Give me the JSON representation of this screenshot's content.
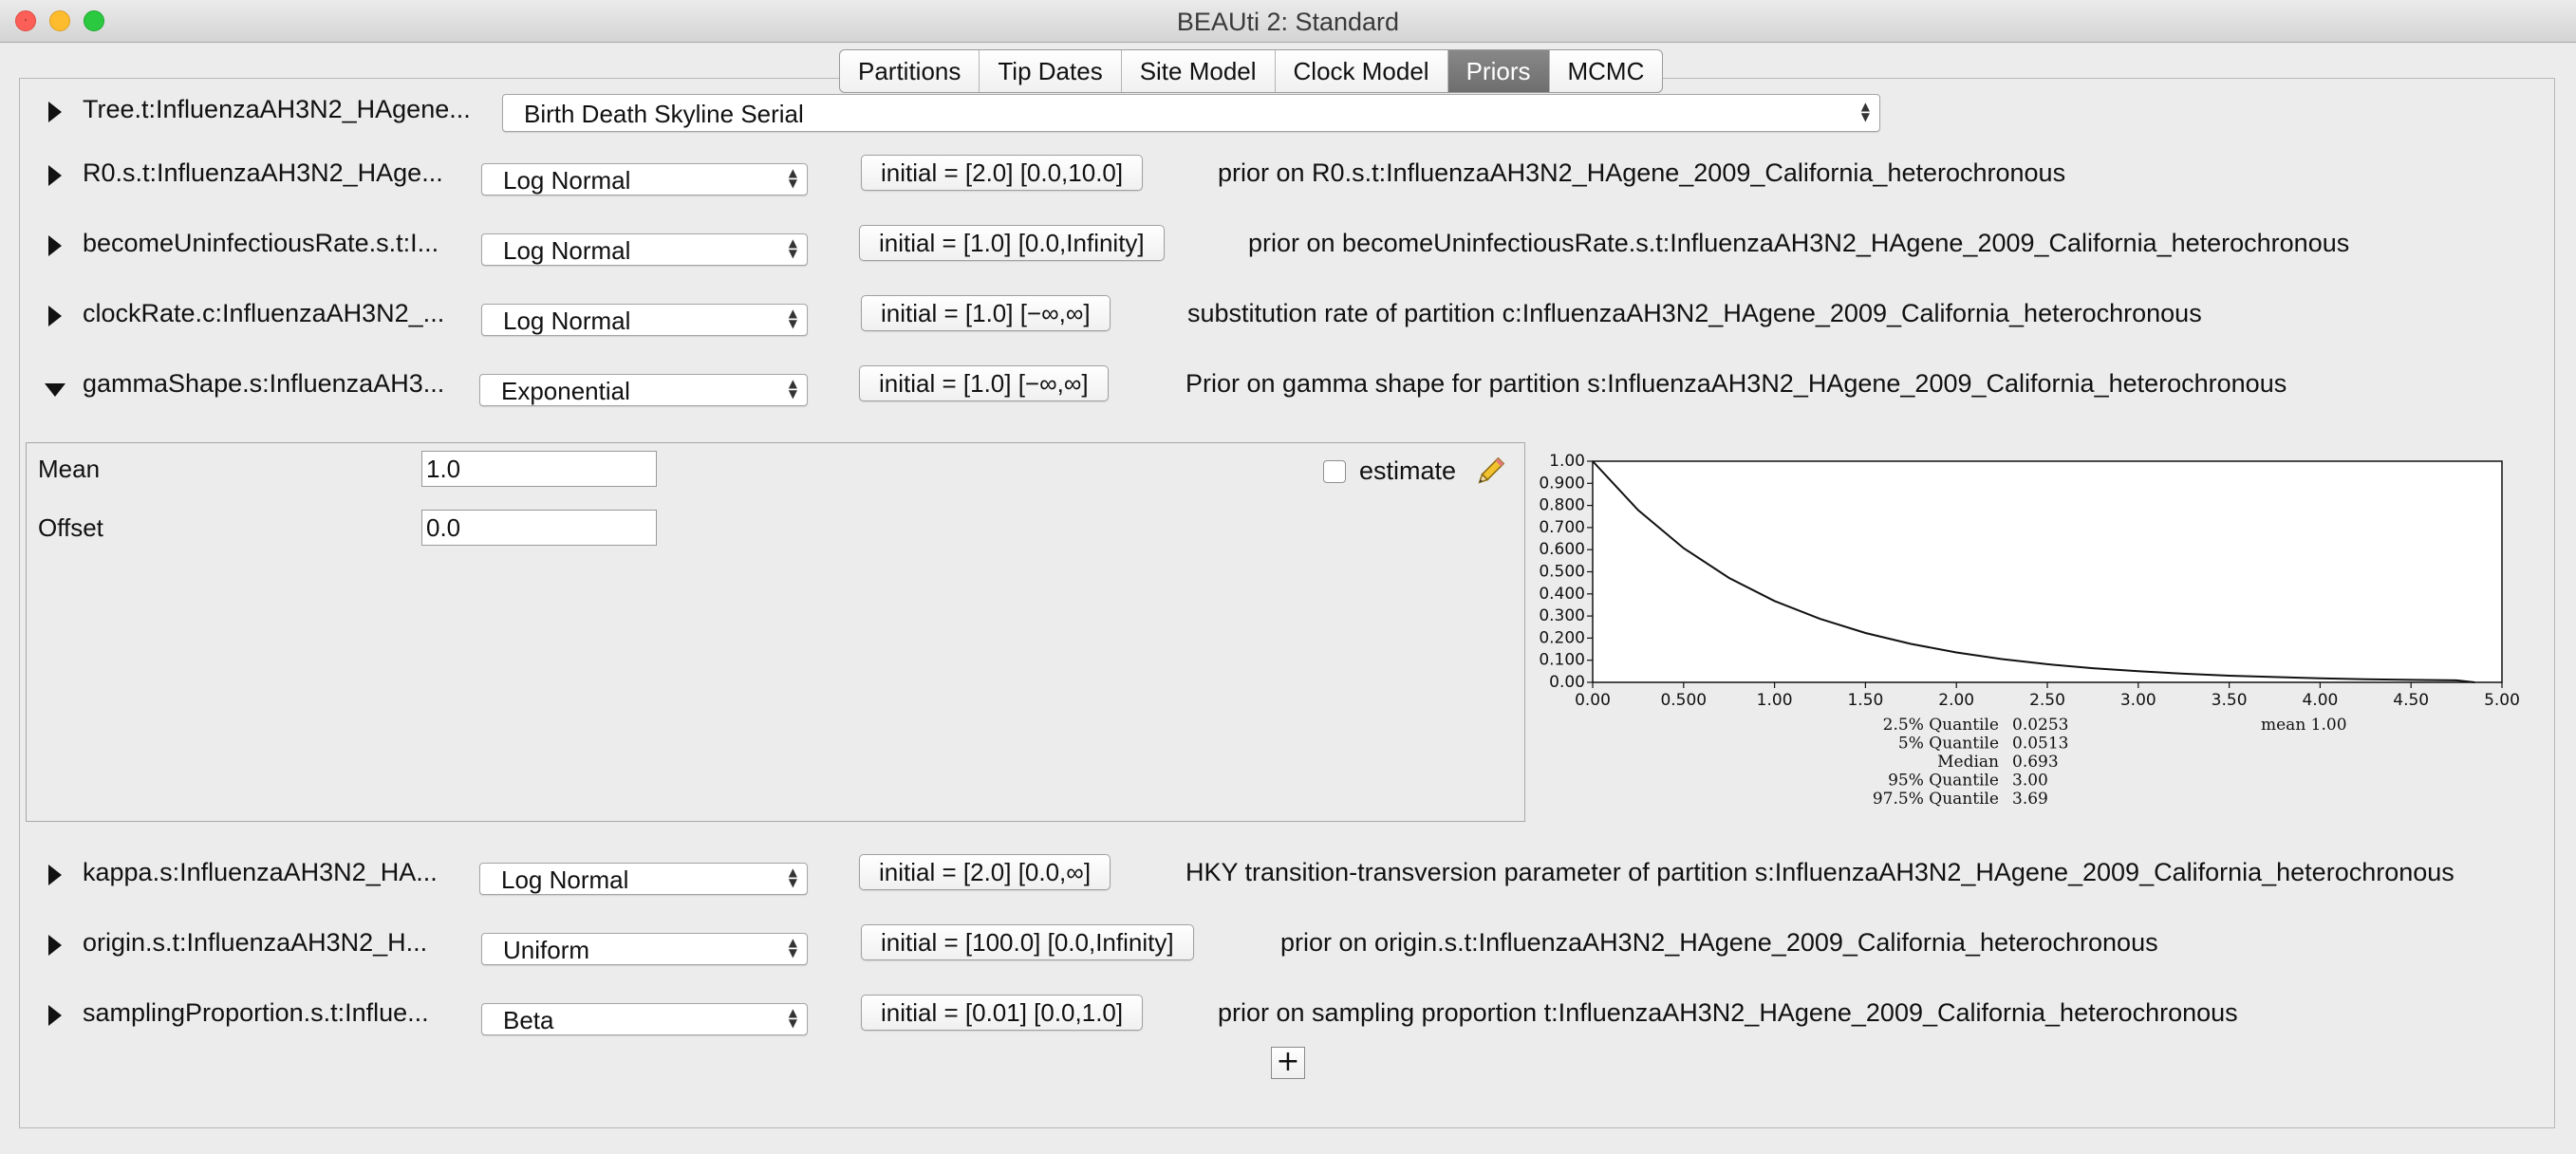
{
  "window": {
    "title": "BEAUti 2: Standard"
  },
  "tabs": [
    "Partitions",
    "Tip Dates",
    "Site Model",
    "Clock Model",
    "Priors",
    "MCMC"
  ],
  "active_tab": "Priors",
  "tree_row": {
    "name": "Tree.t:InfluenzaAH3N2_HAgene...",
    "model": "Birth Death Skyline Serial"
  },
  "priors": [
    {
      "name": "R0.s.t:InfluenzaAH3N2_HAge...",
      "distribution": "Log Normal",
      "initial": "initial = [2.0] [0.0,10.0]",
      "description": "prior on R0.s.t:InfluenzaAH3N2_HAgene_2009_California_heterochronous"
    },
    {
      "name": "becomeUninfectiousRate.s.t:I...",
      "distribution": "Log Normal",
      "initial": "initial = [1.0] [0.0,Infinity]",
      "description": "prior on becomeUninfectiousRate.s.t:InfluenzaAH3N2_HAgene_2009_California_heterochronous"
    },
    {
      "name": "clockRate.c:InfluenzaAH3N2_...",
      "distribution": "Log Normal",
      "initial": "initial = [1.0] [−∞,∞]",
      "description": "substitution rate of partition c:InfluenzaAH3N2_HAgene_2009_California_heterochronous"
    },
    {
      "name": "gammaShape.s:InfluenzaAH3...",
      "distribution": "Exponential",
      "initial": "initial = [1.0] [−∞,∞]",
      "description": "Prior on gamma shape for partition s:InfluenzaAH3N2_HAgene_2009_California_heterochronous"
    },
    {
      "name": "kappa.s:InfluenzaAH3N2_HA...",
      "distribution": "Log Normal",
      "initial": "initial = [2.0] [0.0,∞]",
      "description": "HKY transition-transversion parameter of partition s:InfluenzaAH3N2_HAgene_2009_California_heterochronous"
    },
    {
      "name": "origin.s.t:InfluenzaAH3N2_H...",
      "distribution": "Uniform",
      "initial": "initial = [100.0] [0.0,Infinity]",
      "description": "prior on origin.s.t:InfluenzaAH3N2_HAgene_2009_California_heterochronous"
    },
    {
      "name": "samplingProportion.s.t:Influe...",
      "distribution": "Beta",
      "initial": "initial = [0.01] [0.0,1.0]",
      "description": "prior on sampling proportion t:InfluenzaAH3N2_HAgene_2009_California_heterochronous"
    }
  ],
  "expanded": {
    "mean_label": "Mean",
    "mean_value": "1.0",
    "offset_label": "Offset",
    "offset_value": "0.0",
    "estimate_label": "estimate",
    "estimate_checked": false
  },
  "chart_data": {
    "type": "line",
    "title": "",
    "xlabel": "",
    "ylabel": "",
    "xlim": [
      0,
      5
    ],
    "ylim": [
      0,
      1
    ],
    "x_ticks": [
      "0.00",
      "0.500",
      "1.00",
      "1.50",
      "2.00",
      "2.50",
      "3.00",
      "3.50",
      "4.00",
      "4.50",
      "5.00"
    ],
    "y_ticks": [
      "0.00",
      "0.100",
      "0.200",
      "0.300",
      "0.400",
      "0.500",
      "0.600",
      "0.700",
      "0.800",
      "0.900",
      "1.00"
    ],
    "series": [
      {
        "x": [
          0,
          0.25,
          0.5,
          0.75,
          1.0,
          1.25,
          1.5,
          1.75,
          2.0,
          2.25,
          2.5,
          2.75,
          3.0,
          3.25,
          3.5,
          3.75,
          4.0,
          4.25,
          4.5,
          4.75,
          4.85
        ],
        "y": [
          1.0,
          0.779,
          0.607,
          0.472,
          0.368,
          0.287,
          0.223,
          0.174,
          0.135,
          0.105,
          0.082,
          0.064,
          0.05,
          0.039,
          0.03,
          0.024,
          0.018,
          0.014,
          0.011,
          0.009,
          0.0
        ]
      }
    ],
    "stats": [
      {
        "label": "2.5% Quantile",
        "value": "0.0253"
      },
      {
        "label": "5% Quantile",
        "value": "0.0513"
      },
      {
        "label": "Median",
        "value": "0.693"
      },
      {
        "label": "95% Quantile",
        "value": "3.00"
      },
      {
        "label": "97.5% Quantile",
        "value": "3.69"
      }
    ],
    "mean_text": "mean 1.00"
  },
  "add_button": "+",
  "icons": {
    "expand": "triangle-right-icon",
    "collapse": "triangle-down-icon",
    "edit": "pencil-icon"
  }
}
